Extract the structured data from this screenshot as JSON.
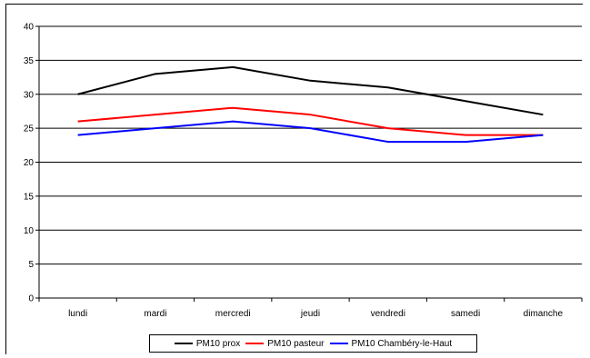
{
  "chart_data": {
    "type": "line",
    "title": "",
    "xlabel": "",
    "ylabel": "",
    "categories": [
      "lundi",
      "mardi",
      "mercredi",
      "jeudi",
      "vendredi",
      "samedi",
      "dimanche"
    ],
    "ylim": [
      0,
      40
    ],
    "yticks": [
      0,
      5,
      10,
      15,
      20,
      25,
      30,
      35,
      40
    ],
    "grid": true,
    "legend_position": "bottom",
    "series": [
      {
        "name": "PM10 prox",
        "color": "#000000",
        "values": [
          30,
          33,
          34,
          32,
          31,
          29,
          27
        ]
      },
      {
        "name": "PM10 pasteur",
        "color": "#ff0000",
        "values": [
          26,
          27,
          28,
          27,
          25,
          24,
          24
        ]
      },
      {
        "name": "PM10 Chambéry-le-Haut",
        "color": "#0000ff",
        "values": [
          24,
          25,
          26,
          25,
          23,
          23,
          24
        ]
      }
    ]
  }
}
